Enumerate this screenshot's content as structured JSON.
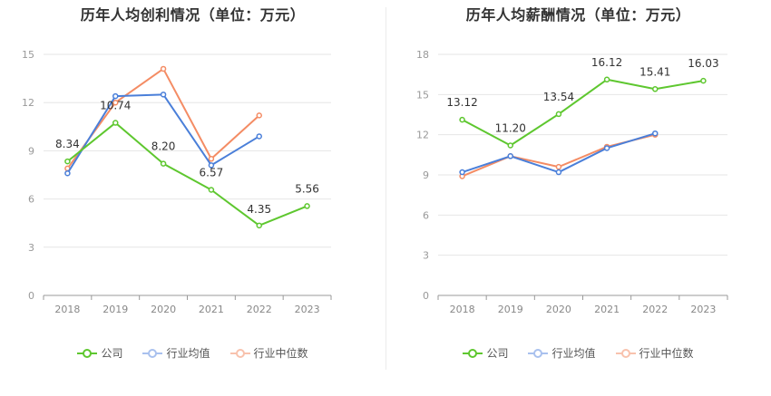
{
  "chart_data": [
    {
      "type": "line",
      "title": "历年人均创利情况（单位：万元）",
      "categories": [
        "2018",
        "2019",
        "2020",
        "2021",
        "2022",
        "2023"
      ],
      "ylim": [
        0,
        15
      ],
      "yticks": [
        0,
        3,
        6,
        9,
        12,
        15
      ],
      "series": [
        {
          "name": "公司",
          "color": "#5ec72f",
          "values": [
            8.34,
            10.74,
            8.2,
            6.57,
            4.35,
            5.56
          ],
          "labels": [
            "8.34",
            "10.74",
            "8.20",
            "6.57",
            "4.35",
            "5.56"
          ]
        },
        {
          "name": "行业均值",
          "color": "#4a7fd9",
          "values": [
            7.6,
            12.4,
            12.5,
            8.1,
            9.9,
            null
          ]
        },
        {
          "name": "行业中位数",
          "color": "#f48c64",
          "values": [
            7.9,
            12.0,
            14.1,
            8.5,
            11.2,
            null
          ]
        }
      ]
    },
    {
      "type": "line",
      "title": "历年人均薪酬情况（单位：万元）",
      "categories": [
        "2018",
        "2019",
        "2020",
        "2021",
        "2022",
        "2023"
      ],
      "ylim": [
        0,
        18
      ],
      "yticks": [
        0,
        3,
        6,
        9,
        12,
        15,
        18
      ],
      "series": [
        {
          "name": "公司",
          "color": "#5ec72f",
          "values": [
            13.12,
            11.2,
            13.54,
            16.12,
            15.41,
            16.03
          ],
          "labels": [
            "13.12",
            "11.20",
            "13.54",
            "16.12",
            "15.41",
            "16.03"
          ]
        },
        {
          "name": "行业均值",
          "color": "#4a7fd9",
          "values": [
            9.2,
            10.4,
            9.2,
            11.0,
            12.1,
            null
          ]
        },
        {
          "name": "行业中位数",
          "color": "#f48c64",
          "values": [
            8.9,
            10.4,
            9.6,
            11.1,
            12.0,
            null
          ]
        }
      ]
    }
  ]
}
